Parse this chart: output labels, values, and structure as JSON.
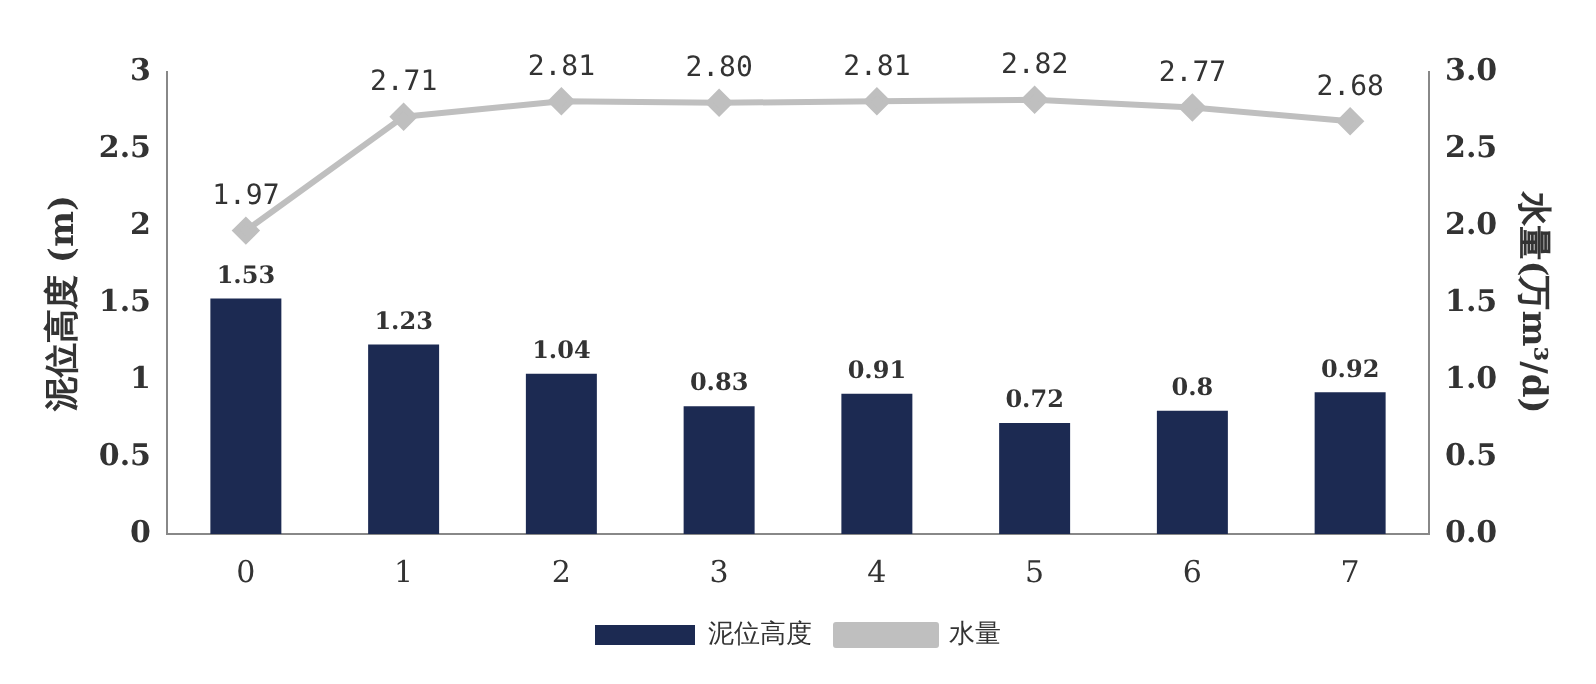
{
  "chart_data": {
    "type": "bar",
    "categories": [
      "0",
      "1",
      "2",
      "3",
      "4",
      "5",
      "6",
      "7"
    ],
    "series": [
      {
        "name": "泥位高度",
        "color": "#1c2a52",
        "values": [
          1.53,
          1.23,
          1.04,
          0.83,
          0.91,
          0.72,
          0.8,
          0.92
        ],
        "value_labels": [
          "1.53",
          "1.23",
          "1.04",
          "0.83",
          "0.91",
          "0.72",
          "0.8",
          "0.92"
        ]
      },
      {
        "name": "水量",
        "type": "line",
        "axis": "y2",
        "color": "#bfbfbf",
        "values": [
          1.97,
          2.71,
          2.81,
          2.8,
          2.81,
          2.82,
          2.77,
          2.68
        ],
        "value_labels": [
          "1.97",
          "2.71",
          "2.81",
          "2.80",
          "2.81",
          "2.82",
          "2.77",
          "2.68"
        ]
      }
    ],
    "ylabel": "泥位高度 (m)",
    "y2label": "水量(万m³/d)",
    "ylim": [
      0,
      3
    ],
    "yticks": [
      0,
      0.5,
      1,
      1.5,
      2,
      2.5,
      3
    ],
    "y2lim": [
      0,
      3
    ],
    "y2ticks": [
      {
        "value": 0,
        "label": "0.0"
      },
      {
        "value": 0.5,
        "label": "0.5"
      },
      {
        "value": 1,
        "label": "1.0"
      },
      {
        "value": 1.5,
        "label": "1.5"
      },
      {
        "value": 2,
        "label": "2.0"
      },
      {
        "value": 2.5,
        "label": "2.5"
      },
      {
        "value": 3,
        "label": "3.0"
      }
    ],
    "legend": "bottom",
    "grid": false,
    "marker": "diamond",
    "line_style": "solid"
  }
}
